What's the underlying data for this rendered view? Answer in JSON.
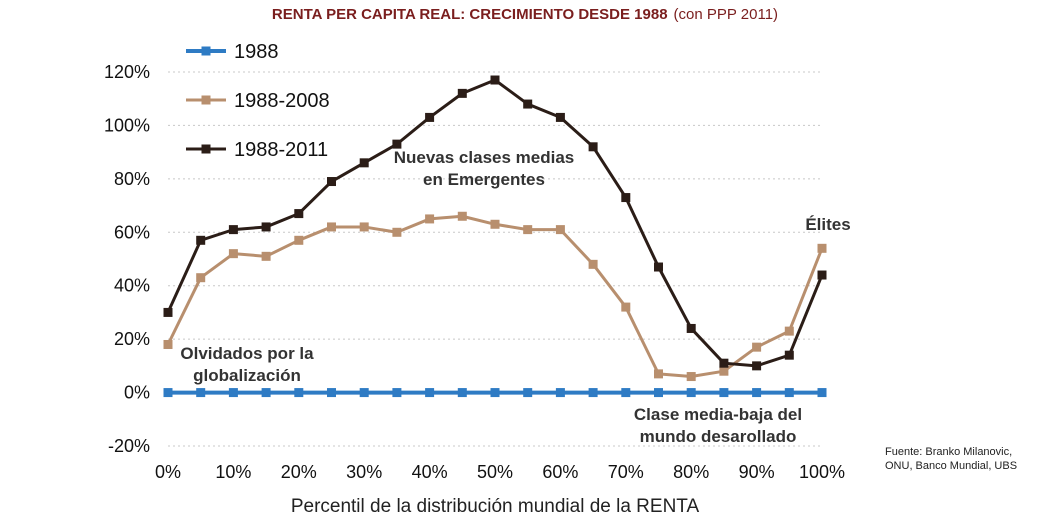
{
  "title": "RENTA PER CAPITA REAL: CRECIMIENTO DESDE 1988",
  "subtitle": "(con PPP 2011)",
  "source_text": "Fuente: Branko Milanovic, ONU, Banco Mundial, UBS",
  "chart_data": {
    "type": "line",
    "title": "RENTA PER CAPITA REAL: CRECIMIENTO DESDE 1988",
    "subtitle": "(con PPP 2011)",
    "xlabel": "Percentil de la distribución  mundial de la RENTA",
    "ylabel": "",
    "x": [
      0,
      5,
      10,
      15,
      20,
      25,
      30,
      35,
      40,
      45,
      50,
      55,
      60,
      65,
      70,
      75,
      80,
      85,
      90,
      95,
      100
    ],
    "xlim": [
      0,
      100
    ],
    "ylim": [
      -20,
      120
    ],
    "x_ticks": [
      "0%",
      "10%",
      "20%",
      "30%",
      "40%",
      "50%",
      "60%",
      "70%",
      "80%",
      "90%",
      "100%"
    ],
    "y_ticks": [
      "-20%",
      "0%",
      "20%",
      "40%",
      "60%",
      "80%",
      "100%",
      "120%"
    ],
    "grid": "horizontal dotted",
    "legend_position": "top-left",
    "series": [
      {
        "name": "1988",
        "color": "#2e7bc4",
        "values": [
          0,
          0,
          0,
          0,
          0,
          0,
          0,
          0,
          0,
          0,
          0,
          0,
          0,
          0,
          0,
          0,
          0,
          0,
          0,
          0,
          0
        ]
      },
      {
        "name": "1988-2008",
        "color": "#b88f6e",
        "values": [
          18,
          43,
          52,
          51,
          57,
          62,
          62,
          60,
          65,
          66,
          63,
          61,
          61,
          48,
          32,
          7,
          6,
          8,
          17,
          23,
          54
        ]
      },
      {
        "name": "1988-2011",
        "color": "#2b1d17",
        "values": [
          30,
          57,
          61,
          62,
          67,
          79,
          86,
          93,
          103,
          112,
          117,
          108,
          103,
          92,
          73,
          47,
          24,
          11,
          10,
          14,
          44
        ]
      }
    ],
    "annotations": [
      {
        "lines": [
          "Nuevas clases medias",
          "en Emergentes"
        ]
      },
      {
        "lines": [
          "Élites"
        ]
      },
      {
        "lines": [
          "Olvidados por la",
          "globalización"
        ]
      },
      {
        "lines": [
          "Clase media-baja del",
          "mundo desarollado"
        ]
      }
    ]
  }
}
